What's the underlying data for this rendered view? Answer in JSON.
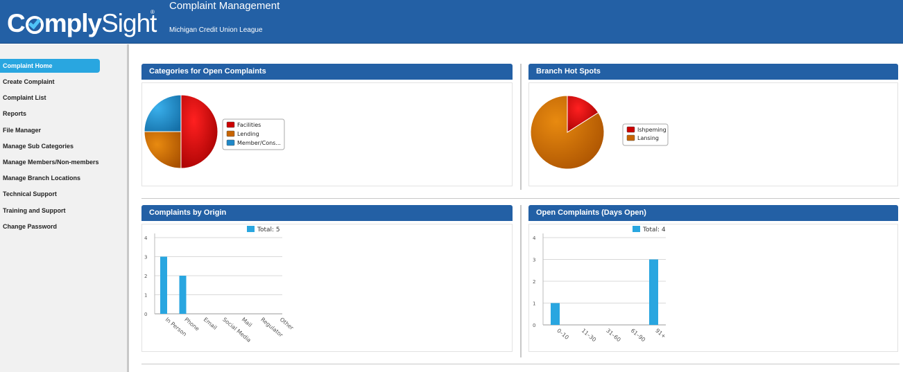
{
  "header": {
    "logo_parts": [
      "C",
      "mply",
      "Sight"
    ],
    "logo_reg": "®",
    "app_title": "Complaint Management",
    "org_name": "Michigan Credit Union League"
  },
  "sidebar": {
    "items": [
      {
        "label": "Complaint Home",
        "active": true
      },
      {
        "label": "Create Complaint"
      },
      {
        "label": "Complaint List"
      },
      {
        "label": "Reports"
      },
      {
        "label": "File Manager"
      },
      {
        "label": "Manage Sub Categories"
      },
      {
        "label": "Manage Members/Non-members"
      },
      {
        "label": "Manage Branch Locations"
      },
      {
        "label": "Technical Support"
      },
      {
        "label": "Training and Support"
      },
      {
        "label": "Change Password"
      }
    ]
  },
  "panels": {
    "categories": {
      "title": "Categories for Open Complaints"
    },
    "hotspots": {
      "title": "Branch Hot Spots"
    },
    "origin": {
      "title": "Complaints by Origin"
    },
    "days_open": {
      "title": "Open Complaints (Days Open)"
    }
  },
  "colors": {
    "brand_blue": "#2360a5",
    "active_nav": "#29a6e0",
    "red": "#cc0000",
    "orange": "#c86400",
    "blue": "#1e88c8",
    "bar": "#29a6e0"
  },
  "chart_data": [
    {
      "type": "pie",
      "labels": [
        "Facilities",
        "Lending",
        "Member/Cons..."
      ],
      "values": [
        50,
        25,
        25
      ],
      "colors": [
        "#cc0000",
        "#c86400",
        "#1e88c8"
      ]
    },
    {
      "type": "pie",
      "labels": [
        "Ishpeming",
        "Lansing"
      ],
      "values": [
        16,
        84
      ],
      "colors": [
        "#cc0000",
        "#c86400"
      ]
    },
    {
      "type": "bar",
      "legend": "Total: 5",
      "categories": [
        "In Person",
        "Phone",
        "Email",
        "Social Media",
        "Mail",
        "Regulator",
        "Other"
      ],
      "values": [
        3,
        2,
        0,
        0,
        0,
        0,
        0
      ],
      "yticks": [
        "0",
        "1",
        "2",
        "3",
        "4"
      ],
      "ylim": [
        0,
        4
      ]
    },
    {
      "type": "bar",
      "legend": "Total: 4",
      "categories": [
        "0–10",
        "11–30",
        "31–60",
        "61–90",
        "91+"
      ],
      "values": [
        1,
        0,
        0,
        0,
        3
      ],
      "yticks": [
        "0",
        "1",
        "2",
        "3",
        "4"
      ],
      "ylim": [
        0,
        4
      ]
    }
  ]
}
